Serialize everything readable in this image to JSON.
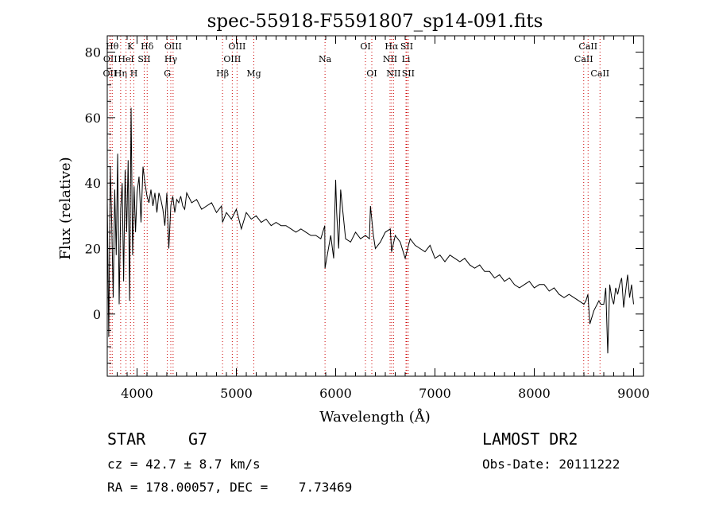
{
  "chart_data": {
    "type": "line",
    "title": "spec-55918-F5591807_sp14-091.fits",
    "xlabel": "Wavelength (Å)",
    "ylabel": "Flux (relative)",
    "xlim": [
      3700,
      9100
    ],
    "ylim": [
      -19,
      85
    ],
    "x_ticks": [
      4000,
      5000,
      6000,
      7000,
      8000,
      9000
    ],
    "y_ticks": [
      0,
      20,
      40,
      60,
      80
    ],
    "grid": false,
    "line_color": "#000000",
    "marker_color": "#cc0000",
    "series": [
      {
        "x": [
          3700,
          3715,
          3730,
          3745,
          3760,
          3775,
          3790,
          3805,
          3820,
          3835,
          3850,
          3865,
          3880,
          3895,
          3910,
          3925,
          3940,
          3955,
          3970,
          3985,
          4000,
          4020,
          4040,
          4060,
          4080,
          4100,
          4120,
          4140,
          4160,
          4180,
          4200,
          4220,
          4240,
          4260,
          4280,
          4300,
          4320,
          4340,
          4360,
          4380,
          4400,
          4420,
          4440,
          4460,
          4480,
          4500,
          4550,
          4600,
          4650,
          4700,
          4750,
          4800,
          4850,
          4861,
          4900,
          4950,
          5000,
          5050,
          5100,
          5150,
          5200,
          5250,
          5300,
          5350,
          5400,
          5450,
          5500,
          5550,
          5600,
          5650,
          5700,
          5750,
          5800,
          5850,
          5890,
          5893,
          5950,
          5980,
          6000,
          6010,
          6030,
          6050,
          6100,
          6150,
          6200,
          6250,
          6300,
          6340,
          6350,
          6380,
          6400,
          6450,
          6500,
          6550,
          6563,
          6600,
          6650,
          6700,
          6750,
          6800,
          6850,
          6900,
          6950,
          7000,
          7050,
          7100,
          7150,
          7200,
          7250,
          7300,
          7350,
          7400,
          7450,
          7500,
          7550,
          7600,
          7650,
          7700,
          7750,
          7800,
          7850,
          7900,
          7950,
          8000,
          8050,
          8100,
          8150,
          8200,
          8250,
          8300,
          8350,
          8400,
          8450,
          8500,
          8520,
          8540,
          8560,
          8600,
          8650,
          8670,
          8700,
          8720,
          8740,
          8760,
          8780,
          8800,
          8820,
          8840,
          8860,
          8880,
          8900,
          8920,
          8940,
          8960,
          8980,
          9000
        ],
        "y": [
          35,
          -7,
          45,
          28,
          5,
          38,
          18,
          49,
          3,
          32,
          40,
          10,
          44,
          25,
          47,
          4,
          63,
          18,
          39,
          25,
          37,
          42,
          28,
          45,
          40,
          36,
          34,
          38,
          33,
          37,
          31,
          37,
          35,
          32,
          27,
          37,
          20,
          33,
          36,
          31,
          35,
          34,
          36,
          33,
          32,
          37,
          34,
          35,
          32,
          33,
          34,
          31,
          33,
          28,
          31,
          29,
          32,
          26,
          31,
          29,
          30,
          28,
          29,
          27,
          28,
          27,
          27,
          26,
          25,
          26,
          25,
          24,
          24,
          23,
          27,
          14,
          24,
          17,
          41,
          31,
          20,
          38,
          23,
          22,
          25,
          23,
          24,
          23,
          33,
          24,
          20,
          22,
          25,
          26,
          19,
          24,
          22,
          17,
          23,
          21,
          20,
          19,
          21,
          17,
          18,
          16,
          18,
          17,
          16,
          17,
          15,
          14,
          15,
          13,
          13,
          11,
          12,
          10,
          11,
          9,
          8,
          9,
          10,
          8,
          9,
          9,
          7,
          8,
          6,
          5,
          6,
          5,
          4,
          3,
          4,
          6,
          -3,
          1,
          4,
          3,
          3,
          8,
          -12,
          9,
          5,
          3,
          8,
          6,
          9,
          11,
          2,
          7,
          12,
          5,
          9,
          3
        ]
      }
    ],
    "line_markers": [
      {
        "label": "OII",
        "wavelength": 3727,
        "row": 3
      },
      {
        "label": "OII",
        "wavelength": 3730,
        "row": 2
      },
      {
        "label": "Hθ",
        "wavelength": 3750,
        "row": 1
      },
      {
        "label": "Hη",
        "wavelength": 3835,
        "row": 3
      },
      {
        "label": "HeI",
        "wavelength": 3889,
        "row": 2
      },
      {
        "label": "K",
        "wavelength": 3934,
        "row": 1
      },
      {
        "label": "H",
        "wavelength": 3968,
        "row": 3
      },
      {
        "label": "SII",
        "wavelength": 4072,
        "row": 2
      },
      {
        "label": "Hδ",
        "wavelength": 4102,
        "row": 1
      },
      {
        "label": "G",
        "wavelength": 4305,
        "row": 3
      },
      {
        "label": "Hγ",
        "wavelength": 4340,
        "row": 2
      },
      {
        "label": "OIII",
        "wavelength": 4363,
        "row": 1
      },
      {
        "label": "Hβ",
        "wavelength": 4861,
        "row": 3
      },
      {
        "label": "OIII",
        "wavelength": 4959,
        "row": 2
      },
      {
        "label": "OIII",
        "wavelength": 5007,
        "row": 1
      },
      {
        "label": "Mg",
        "wavelength": 5176,
        "row": 3
      },
      {
        "label": "Na",
        "wavelength": 5893,
        "row": 2
      },
      {
        "label": "OI",
        "wavelength": 6300,
        "row": 1
      },
      {
        "label": "OI",
        "wavelength": 6364,
        "row": 3
      },
      {
        "label": "NII",
        "wavelength": 6548,
        "row": 2
      },
      {
        "label": "Hα",
        "wavelength": 6563,
        "row": 1
      },
      {
        "label": "NII",
        "wavelength": 6583,
        "row": 3
      },
      {
        "label": "Li",
        "wavelength": 6708,
        "row": 2
      },
      {
        "label": "SII",
        "wavelength": 6716,
        "row": 1
      },
      {
        "label": "SII",
        "wavelength": 6731,
        "row": 3
      },
      {
        "label": "CaII",
        "wavelength": 8498,
        "row": 2
      },
      {
        "label": "CaII",
        "wavelength": 8542,
        "row": 1
      },
      {
        "label": "CaII",
        "wavelength": 8662,
        "row": 3
      }
    ]
  },
  "info": {
    "object_class": "STAR",
    "subclass": "G7",
    "survey": "LAMOST DR2",
    "cz": "cz = 42.7 ± 8.7 km/s",
    "obs_date": "Obs-Date: 20111222",
    "coords": "RA = 178.00057, DEC =    7.73469"
  }
}
